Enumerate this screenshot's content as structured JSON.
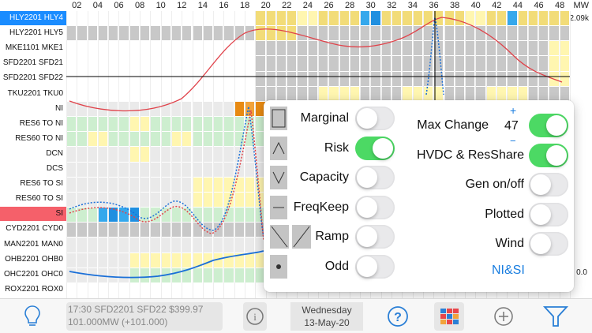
{
  "header": {
    "mw_unit": "MW",
    "mw_value": "2.09k",
    "mw_axis_tail": "0.0",
    "columns": [
      "02",
      "04",
      "06",
      "08",
      "10",
      "12",
      "14",
      "16",
      "18",
      "20",
      "22",
      "24",
      "26",
      "28",
      "30",
      "32",
      "34",
      "36",
      "38",
      "40",
      "42",
      "44",
      "46",
      "48"
    ]
  },
  "rows": [
    {
      "label": "HLY2201 HLY4",
      "highlight": "blue"
    },
    {
      "label": "HLY2201 HLY5",
      "highlight": ""
    },
    {
      "label": "MKE1101 MKE1",
      "highlight": ""
    },
    {
      "label": "SFD2201 SFD21",
      "highlight": ""
    },
    {
      "label": "SFD2201 SFD22",
      "highlight": ""
    },
    {
      "label": "TKU2201 TKU0",
      "highlight": ""
    },
    {
      "label": "NI",
      "highlight": ""
    },
    {
      "label": "RES6 TO NI",
      "highlight": ""
    },
    {
      "label": "RES60 TO NI",
      "highlight": ""
    },
    {
      "label": "DCN",
      "highlight": ""
    },
    {
      "label": "DCS",
      "highlight": ""
    },
    {
      "label": "RES6 TO SI",
      "highlight": ""
    },
    {
      "label": "RES60 TO SI",
      "highlight": ""
    },
    {
      "label": "SI",
      "highlight": "red"
    },
    {
      "label": "CYD2201 CYD0",
      "highlight": ""
    },
    {
      "label": "MAN2201 MAN0",
      "highlight": ""
    },
    {
      "label": "OHB2201 OHB0",
      "highlight": ""
    },
    {
      "label": "OHC2201 OHC0",
      "highlight": ""
    },
    {
      "label": "ROX2201 ROX0",
      "highlight": ""
    }
  ],
  "panel": {
    "left": [
      {
        "label": "Marginal",
        "icon": "marginal-icon",
        "on": false
      },
      {
        "label": "Risk",
        "icon": "risk-icon",
        "on": true
      },
      {
        "label": "Capacity",
        "icon": "capacity-icon",
        "on": false
      },
      {
        "label": "FreqKeep",
        "icon": "freqkeep-icon",
        "on": false
      },
      {
        "label": "Ramp",
        "icon": "ramp-icon",
        "on": false
      },
      {
        "label": "Odd",
        "icon": "odd-icon",
        "on": false
      }
    ],
    "right": [
      {
        "label": "Max Change",
        "on": true
      },
      {
        "label": "HVDC & ResShare",
        "on": true
      },
      {
        "label": "Gen on/off",
        "on": false
      },
      {
        "label": "Plotted",
        "on": false
      },
      {
        "label": "Wind",
        "on": false
      }
    ],
    "max_change_value": "47",
    "plus": "+",
    "minus": "−",
    "link": "NI&SI",
    "link_color": "#1a7ee0"
  },
  "toolbar": {
    "status_line1": "17:30 SFD2201 SFD22 $399.97",
    "status_line2": "101.000MW (+101.000)",
    "date_line1": "Wednesday",
    "date_line2": "13-May-20",
    "accent": "#2a7fd6"
  }
}
